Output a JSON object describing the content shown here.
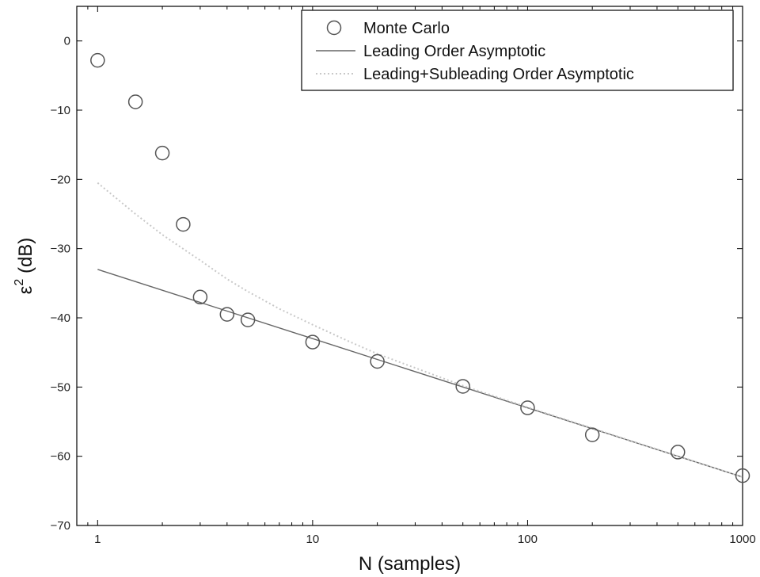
{
  "chart_data": {
    "type": "line",
    "xlabel": "N (samples)",
    "ylabel_base": "ε",
    "ylabel_sup": "2",
    "ylabel_rest": " (dB)",
    "xscale": "log",
    "xlim": [
      0.8,
      1000
    ],
    "ylim": [
      -70,
      5
    ],
    "x_ticks": [
      1,
      10,
      100,
      1000
    ],
    "x_tick_labels": [
      "1",
      "10",
      "100",
      "1000"
    ],
    "y_ticks": [
      0,
      -10,
      -20,
      -30,
      -40,
      -50,
      -60,
      -70
    ],
    "y_tick_labels": [
      "0",
      "−10",
      "−20",
      "−30",
      "−40",
      "−50",
      "−60",
      "−70"
    ],
    "grid": false,
    "legend_position": "top-right",
    "colors": {
      "markers": "#555555",
      "leading": "#666666",
      "subleading": "#c8c8c8",
      "axes": "#000000"
    },
    "series": [
      {
        "name": "Monte Carlo",
        "style": "markers",
        "x": [
          1,
          1.5,
          2,
          2.5,
          3,
          4,
          5,
          10,
          20,
          50,
          100,
          200,
          500,
          1000
        ],
        "y": [
          -2.8,
          -8.8,
          -16.2,
          -26.5,
          -37.0,
          -39.5,
          -40.3,
          -43.5,
          -46.3,
          -49.9,
          -53.0,
          -56.9,
          -59.4,
          -62.8
        ]
      },
      {
        "name": "Leading Order Asymptotic",
        "style": "solid",
        "x": [
          1,
          1000
        ],
        "y": [
          -33.0,
          -63.0
        ]
      },
      {
        "name": "Leading+Subleading Order Asymptotic",
        "style": "dotted",
        "x": [
          1,
          1.5,
          2,
          3,
          4,
          5,
          7,
          10,
          15,
          20,
          50,
          100,
          1000
        ],
        "y": [
          -20.5,
          -25.0,
          -28.0,
          -31.7,
          -34.4,
          -36.2,
          -38.7,
          -41.0,
          -43.5,
          -45.2,
          -49.8,
          -52.9,
          -63.0
        ]
      }
    ]
  }
}
